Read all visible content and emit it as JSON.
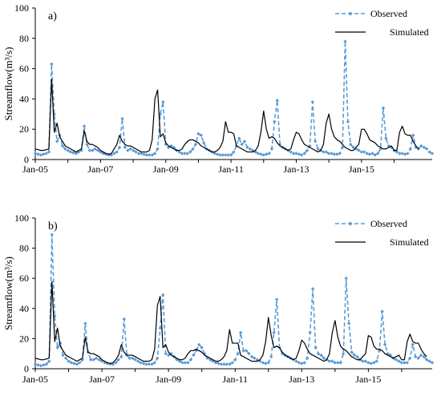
{
  "chart_data": [
    {
      "type": "line",
      "panel_label": "a)",
      "ylabel": "Streamflow(m³/s)",
      "xlabel": "",
      "ylim": [
        0,
        100
      ],
      "yticks": [
        0,
        20,
        40,
        60,
        80,
        100
      ],
      "xlim": [
        "2005-01",
        "2015-12"
      ],
      "xticks": [
        "Jan-05",
        "Jan-07",
        "Jan-09",
        "Jan-11",
        "Jan-13",
        "Jan-15"
      ],
      "legend_position": "top-right",
      "series": [
        {
          "name": "Observed",
          "color": "#5b9bd5",
          "style": "dashed-with-diamond-markers",
          "values": [
            4,
            3.5,
            3,
            3.5,
            4,
            5,
            63,
            30,
            12,
            16,
            9,
            7,
            6,
            5,
            4.5,
            4,
            5,
            6,
            22,
            10,
            6,
            6,
            7,
            6,
            5,
            4,
            3.5,
            3,
            3,
            4,
            5,
            8,
            27,
            8,
            6,
            7,
            6,
            5,
            4,
            4,
            3.5,
            3,
            3,
            3,
            4,
            7,
            30,
            38,
            10,
            8,
            9,
            8,
            6,
            5,
            4,
            4,
            4,
            5,
            7,
            10,
            17,
            16,
            11,
            7,
            6,
            5,
            4,
            3.5,
            3,
            3,
            3,
            3,
            3,
            5,
            9,
            14,
            10,
            12,
            8,
            7,
            6,
            5,
            4,
            3.5,
            3,
            3.5,
            4,
            7,
            25,
            39,
            10,
            8,
            7,
            6,
            5,
            4,
            4,
            3.5,
            3,
            4,
            6,
            9,
            38,
            12,
            7,
            6,
            5,
            5,
            4,
            4,
            3.5,
            3.5,
            4,
            8,
            78,
            25,
            10,
            8,
            7,
            6,
            5,
            5,
            4,
            3.5,
            4,
            3,
            4,
            7,
            34,
            14,
            9,
            8,
            6,
            5,
            4,
            4,
            3.5,
            4,
            7,
            16,
            8,
            7,
            9,
            8,
            7,
            5,
            4
          ]
        },
        {
          "name": "Simulated",
          "color": "#000000",
          "style": "solid",
          "values": [
            7,
            6.5,
            6,
            6,
            6.5,
            7,
            53,
            18,
            24,
            15,
            12,
            9,
            8,
            7,
            6,
            5,
            6,
            7,
            19,
            12,
            10,
            10,
            9,
            8,
            6,
            5,
            4,
            3.5,
            4,
            7,
            10,
            16,
            12,
            10,
            9,
            9,
            8,
            7,
            6,
            5,
            5,
            5,
            6,
            13,
            40,
            46,
            15,
            17,
            11,
            9,
            8,
            7,
            6,
            6,
            7,
            10,
            12,
            13,
            13,
            12,
            11,
            9,
            8,
            7,
            6,
            5,
            5,
            6,
            8,
            12,
            25,
            18,
            18,
            17,
            9,
            8,
            7,
            6,
            5,
            5,
            5,
            6,
            9,
            18,
            32,
            20,
            14,
            15,
            14,
            11,
            9,
            8,
            7,
            6,
            7,
            13,
            18,
            17,
            13,
            10,
            9,
            8,
            7,
            6,
            5,
            6,
            10,
            24,
            30,
            20,
            15,
            13,
            12,
            10,
            8,
            7,
            6,
            6,
            8,
            10,
            20,
            20,
            17,
            13,
            12,
            11,
            9,
            8,
            7,
            7,
            8,
            9,
            6,
            6,
            18,
            22,
            17,
            16,
            16,
            12,
            9,
            7
          ]
        }
      ]
    },
    {
      "type": "line",
      "panel_label": "b)",
      "ylabel": "Streamflow(m³/s)",
      "xlabel": "",
      "ylim": [
        0,
        100
      ],
      "yticks": [
        0,
        20,
        40,
        60,
        80,
        100
      ],
      "xlim": [
        "2005-01",
        "2015-12"
      ],
      "xticks": [
        "Jan-05",
        "Jan-07",
        "Jan-09",
        "Jan-11",
        "Jan-13",
        "Jan-15"
      ],
      "legend_position": "top-right",
      "series": [
        {
          "name": "Observed",
          "color": "#5b9bd5",
          "style": "dashed-with-diamond-markers",
          "values": [
            3,
            2.5,
            2,
            2.5,
            3,
            5,
            89,
            35,
            14,
            17,
            9,
            7,
            5,
            4,
            3.5,
            3,
            4,
            6,
            30,
            11,
            6,
            6,
            7,
            6,
            5,
            4,
            3.5,
            3,
            3,
            4,
            6,
            8,
            33,
            9,
            7,
            7,
            6,
            5,
            4,
            3.5,
            3,
            3,
            3,
            4,
            7,
            27,
            49,
            10,
            9,
            10,
            8,
            6,
            5,
            4,
            4,
            4,
            6,
            9,
            12,
            16,
            14,
            10,
            7,
            6,
            5,
            4,
            3.5,
            3,
            3,
            3,
            3,
            4,
            6,
            10,
            24,
            12,
            12,
            10,
            8,
            7,
            6,
            5,
            4,
            3.5,
            4,
            8,
            24,
            46,
            14,
            10,
            9,
            8,
            7,
            6,
            5,
            4,
            3.5,
            4,
            7,
            24,
            53,
            14,
            10,
            9,
            7,
            6,
            5,
            5,
            4,
            4,
            4,
            10,
            60,
            30,
            11,
            9,
            8,
            6,
            5,
            5,
            4,
            3.5,
            4,
            5,
            12,
            38,
            16,
            10,
            9,
            7,
            6,
            5,
            4,
            4,
            4,
            7,
            16,
            8,
            7,
            9,
            8,
            6,
            5,
            4
          ]
        },
        {
          "name": "Simulated",
          "color": "#000000",
          "style": "solid",
          "values": [
            7,
            6.5,
            6,
            6,
            6.5,
            7,
            58,
            18,
            27,
            15,
            12,
            9,
            8,
            7,
            6,
            5,
            6,
            7,
            21,
            11,
            10,
            10,
            9,
            8,
            6,
            5,
            4,
            3.5,
            4,
            6,
            9,
            16,
            11,
            9,
            9,
            9,
            8,
            7,
            6,
            5,
            5,
            5,
            6,
            13,
            42,
            48,
            14,
            16,
            11,
            9,
            8,
            7,
            6,
            6,
            7,
            10,
            12,
            12,
            13,
            12,
            11,
            9,
            8,
            7,
            6,
            5,
            5,
            6,
            8,
            12,
            26,
            17,
            17,
            17,
            9,
            8,
            7,
            6,
            5,
            5,
            5,
            6,
            9,
            18,
            34,
            22,
            14,
            15,
            14,
            11,
            9,
            8,
            7,
            6,
            7,
            12,
            19,
            17,
            13,
            10,
            9,
            8,
            7,
            6,
            5,
            6,
            10,
            24,
            32,
            21,
            15,
            13,
            12,
            10,
            8,
            7,
            6,
            6,
            8,
            10,
            22,
            21,
            15,
            13,
            13,
            12,
            10,
            9,
            8,
            7,
            8,
            9,
            6,
            6,
            18,
            23,
            18,
            17,
            17,
            13,
            10,
            8
          ]
        }
      ]
    }
  ]
}
